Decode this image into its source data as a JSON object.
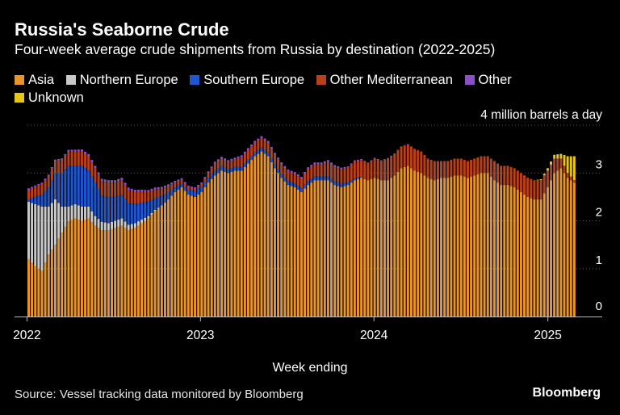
{
  "title": "Russia's Seaborne Crude",
  "subtitle": "Four-week average crude shipments from Russia by destination (2022-2025)",
  "source": "Source: Vessel tracking data monitored by Bloomberg",
  "brand": "Bloomberg",
  "colors": {
    "asia": "#e8952c",
    "northern_europe": "#c9c9c9",
    "southern_europe": "#1f57d1",
    "other_mediterranean": "#b84119",
    "other": "#8b4fc9",
    "unknown": "#e6c619",
    "background": "#000000",
    "grid": "#555555"
  },
  "chart_data": {
    "type": "bar",
    "stacked": true,
    "ylabel": "4 million barrels a day",
    "ylim": [
      0,
      4
    ],
    "yticks": [
      0,
      1,
      2,
      3
    ],
    "xlabel": "Week ending",
    "x_tick_labels": [
      "2022",
      "2023",
      "2024",
      "2025"
    ],
    "grid": true,
    "legend_position": "top-left",
    "start_week": "2022-01-02",
    "week_step_days": 7,
    "n_weeks": 165,
    "series": [
      {
        "name": "Asia",
        "color_key": "asia",
        "anchors": [
          [
            0,
            1.2
          ],
          [
            2,
            1.05
          ],
          [
            4,
            0.95
          ],
          [
            6,
            1.3
          ],
          [
            8,
            1.5
          ],
          [
            10,
            1.75
          ],
          [
            12,
            2.0
          ],
          [
            14,
            2.05
          ],
          [
            16,
            2.0
          ],
          [
            18,
            2.05
          ],
          [
            20,
            1.9
          ],
          [
            22,
            1.8
          ],
          [
            24,
            1.8
          ],
          [
            26,
            1.85
          ],
          [
            28,
            1.9
          ],
          [
            30,
            1.8
          ],
          [
            32,
            1.85
          ],
          [
            34,
            1.95
          ],
          [
            36,
            2.05
          ],
          [
            38,
            2.2
          ],
          [
            40,
            2.3
          ],
          [
            42,
            2.45
          ],
          [
            44,
            2.6
          ],
          [
            46,
            2.7
          ],
          [
            48,
            2.55
          ],
          [
            50,
            2.5
          ],
          [
            52,
            2.6
          ],
          [
            54,
            2.8
          ],
          [
            56,
            2.95
          ],
          [
            58,
            3.05
          ],
          [
            60,
            3.0
          ],
          [
            62,
            3.05
          ],
          [
            64,
            3.05
          ],
          [
            66,
            3.2
          ],
          [
            68,
            3.35
          ],
          [
            70,
            3.45
          ],
          [
            72,
            3.35
          ],
          [
            74,
            3.1
          ],
          [
            76,
            2.9
          ],
          [
            78,
            2.75
          ],
          [
            80,
            2.7
          ],
          [
            82,
            2.6
          ],
          [
            84,
            2.75
          ],
          [
            86,
            2.85
          ],
          [
            88,
            2.85
          ],
          [
            90,
            2.85
          ],
          [
            92,
            2.75
          ],
          [
            94,
            2.7
          ],
          [
            96,
            2.75
          ],
          [
            98,
            2.85
          ],
          [
            100,
            2.9
          ],
          [
            102,
            2.85
          ],
          [
            104,
            2.9
          ],
          [
            106,
            2.85
          ],
          [
            108,
            2.85
          ],
          [
            110,
            2.95
          ],
          [
            112,
            3.1
          ],
          [
            114,
            3.15
          ],
          [
            116,
            3.05
          ],
          [
            118,
            3.0
          ],
          [
            120,
            2.9
          ],
          [
            122,
            2.85
          ],
          [
            124,
            2.9
          ],
          [
            126,
            2.9
          ],
          [
            128,
            2.95
          ],
          [
            130,
            2.95
          ],
          [
            132,
            2.9
          ],
          [
            134,
            2.95
          ],
          [
            136,
            3.0
          ],
          [
            138,
            3.0
          ],
          [
            140,
            2.85
          ],
          [
            142,
            2.75
          ],
          [
            144,
            2.75
          ],
          [
            146,
            2.7
          ],
          [
            148,
            2.6
          ],
          [
            150,
            2.5
          ],
          [
            152,
            2.45
          ],
          [
            154,
            2.45
          ],
          [
            156,
            2.7
          ],
          [
            158,
            3.0
          ],
          [
            160,
            3.1
          ],
          [
            162,
            2.9
          ],
          [
            164,
            2.8
          ]
        ]
      },
      {
        "name": "Northern Europe",
        "color_key": "northern_europe",
        "anchors": [
          [
            0,
            1.2
          ],
          [
            2,
            1.3
          ],
          [
            4,
            1.35
          ],
          [
            6,
            1.0
          ],
          [
            8,
            0.95
          ],
          [
            10,
            0.55
          ],
          [
            12,
            0.3
          ],
          [
            14,
            0.3
          ],
          [
            16,
            0.3
          ],
          [
            18,
            0.25
          ],
          [
            20,
            0.2
          ],
          [
            22,
            0.18
          ],
          [
            24,
            0.15
          ],
          [
            26,
            0.15
          ],
          [
            28,
            0.15
          ],
          [
            30,
            0.12
          ],
          [
            32,
            0.1
          ],
          [
            34,
            0.08
          ],
          [
            36,
            0.05
          ],
          [
            38,
            0.03
          ],
          [
            40,
            0.02
          ],
          [
            42,
            0.0
          ],
          [
            164,
            0.0
          ]
        ]
      },
      {
        "name": "Southern Europe",
        "color_key": "southern_europe",
        "anchors": [
          [
            0,
            0.05
          ],
          [
            2,
            0.15
          ],
          [
            4,
            0.25
          ],
          [
            6,
            0.4
          ],
          [
            8,
            0.55
          ],
          [
            10,
            0.7
          ],
          [
            12,
            0.85
          ],
          [
            14,
            0.8
          ],
          [
            16,
            0.85
          ],
          [
            18,
            0.75
          ],
          [
            20,
            0.7
          ],
          [
            22,
            0.55
          ],
          [
            24,
            0.55
          ],
          [
            26,
            0.5
          ],
          [
            28,
            0.5
          ],
          [
            30,
            0.45
          ],
          [
            32,
            0.4
          ],
          [
            34,
            0.35
          ],
          [
            36,
            0.3
          ],
          [
            38,
            0.25
          ],
          [
            40,
            0.2
          ],
          [
            42,
            0.15
          ],
          [
            44,
            0.1
          ],
          [
            46,
            0.08
          ],
          [
            48,
            0.1
          ],
          [
            50,
            0.12
          ],
          [
            52,
            0.12
          ],
          [
            54,
            0.1
          ],
          [
            56,
            0.1
          ],
          [
            58,
            0.1
          ],
          [
            60,
            0.08
          ],
          [
            62,
            0.08
          ],
          [
            64,
            0.08
          ],
          [
            66,
            0.08
          ],
          [
            68,
            0.08
          ],
          [
            70,
            0.08
          ],
          [
            72,
            0.08
          ],
          [
            74,
            0.08
          ],
          [
            76,
            0.08
          ],
          [
            78,
            0.08
          ],
          [
            80,
            0.08
          ],
          [
            82,
            0.08
          ],
          [
            84,
            0.08
          ],
          [
            86,
            0.08
          ],
          [
            88,
            0.08
          ],
          [
            90,
            0.08
          ],
          [
            92,
            0.08
          ],
          [
            94,
            0.08
          ],
          [
            96,
            0.06
          ],
          [
            98,
            0.04
          ],
          [
            100,
            0.02
          ],
          [
            102,
            0.0
          ],
          [
            164,
            0.0
          ]
        ]
      },
      {
        "name": "Other Mediterranean",
        "color_key": "other_mediterranean",
        "anchors": [
          [
            0,
            0.2
          ],
          [
            4,
            0.22
          ],
          [
            8,
            0.25
          ],
          [
            12,
            0.3
          ],
          [
            16,
            0.3
          ],
          [
            20,
            0.3
          ],
          [
            24,
            0.3
          ],
          [
            28,
            0.3
          ],
          [
            32,
            0.25
          ],
          [
            36,
            0.2
          ],
          [
            40,
            0.15
          ],
          [
            44,
            0.1
          ],
          [
            48,
            0.05
          ],
          [
            50,
            0.05
          ],
          [
            52,
            0.05
          ],
          [
            54,
            0.1
          ],
          [
            56,
            0.15
          ],
          [
            58,
            0.15
          ],
          [
            60,
            0.15
          ],
          [
            62,
            0.15
          ],
          [
            64,
            0.2
          ],
          [
            66,
            0.2
          ],
          [
            68,
            0.2
          ],
          [
            70,
            0.2
          ],
          [
            72,
            0.2
          ],
          [
            74,
            0.2
          ],
          [
            76,
            0.2
          ],
          [
            78,
            0.2
          ],
          [
            80,
            0.2
          ],
          [
            82,
            0.2
          ],
          [
            84,
            0.25
          ],
          [
            86,
            0.25
          ],
          [
            88,
            0.25
          ],
          [
            90,
            0.3
          ],
          [
            92,
            0.3
          ],
          [
            94,
            0.3
          ],
          [
            96,
            0.3
          ],
          [
            98,
            0.35
          ],
          [
            100,
            0.35
          ],
          [
            102,
            0.35
          ],
          [
            104,
            0.4
          ],
          [
            106,
            0.4
          ],
          [
            108,
            0.45
          ],
          [
            110,
            0.45
          ],
          [
            112,
            0.45
          ],
          [
            114,
            0.45
          ],
          [
            116,
            0.45
          ],
          [
            118,
            0.45
          ],
          [
            120,
            0.4
          ],
          [
            122,
            0.4
          ],
          [
            124,
            0.35
          ],
          [
            126,
            0.35
          ],
          [
            128,
            0.35
          ],
          [
            130,
            0.35
          ],
          [
            132,
            0.35
          ],
          [
            134,
            0.35
          ],
          [
            136,
            0.35
          ],
          [
            138,
            0.35
          ],
          [
            140,
            0.4
          ],
          [
            142,
            0.4
          ],
          [
            144,
            0.4
          ],
          [
            146,
            0.4
          ],
          [
            148,
            0.4
          ],
          [
            150,
            0.4
          ],
          [
            152,
            0.4
          ],
          [
            154,
            0.4
          ],
          [
            156,
            0.35
          ],
          [
            158,
            0.3
          ],
          [
            160,
            0.2
          ],
          [
            162,
            0.1
          ],
          [
            164,
            0.05
          ]
        ]
      },
      {
        "name": "Other",
        "color_key": "other",
        "anchors": [
          [
            0,
            0.03
          ],
          [
            10,
            0.03
          ],
          [
            20,
            0.05
          ],
          [
            30,
            0.05
          ],
          [
            40,
            0.04
          ],
          [
            50,
            0.03
          ],
          [
            60,
            0.04
          ],
          [
            70,
            0.04
          ],
          [
            80,
            0.04
          ],
          [
            90,
            0.04
          ],
          [
            100,
            0.02
          ],
          [
            110,
            0.01
          ],
          [
            120,
            0.0
          ],
          [
            164,
            0.0
          ]
        ]
      },
      {
        "name": "Unknown",
        "color_key": "unknown",
        "anchors": [
          [
            0,
            0.0
          ],
          [
            152,
            0.0
          ],
          [
            154,
            0.02
          ],
          [
            156,
            0.05
          ],
          [
            158,
            0.08
          ],
          [
            160,
            0.1
          ],
          [
            162,
            0.35
          ],
          [
            164,
            0.5
          ]
        ]
      }
    ]
  }
}
